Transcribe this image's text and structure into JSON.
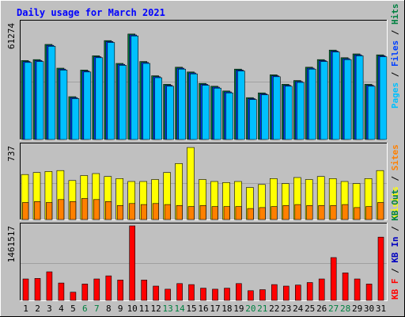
{
  "title": "Daily usage for March 2021",
  "colors": {
    "background": "#c0c0c0",
    "title": "#0000ff",
    "pages": "#00c0ff",
    "files": "#0040ff",
    "hits": "#008040",
    "visits": "#ffff00",
    "sites": "#ff8000",
    "kbin": "#0000c0",
    "kbout": "#008040",
    "kbf": "#ff0000",
    "weekend": "#008040"
  },
  "side_labels": {
    "top": [
      "Pages",
      "Files",
      "Hits"
    ],
    "middle": [
      "Visits",
      "Sites"
    ],
    "bottom": [
      "KB F",
      "KB In",
      "KB Out"
    ]
  },
  "chart_data": {
    "type": "bar",
    "days": [
      "1",
      "2",
      "3",
      "4",
      "5",
      "6",
      "7",
      "8",
      "9",
      "10",
      "11",
      "12",
      "13",
      "14",
      "15",
      "16",
      "17",
      "18",
      "19",
      "20",
      "21",
      "22",
      "23",
      "24",
      "25",
      "26",
      "27",
      "28",
      "29",
      "30",
      "31"
    ],
    "weekend_days": [
      "6",
      "7",
      "13",
      "14",
      "20",
      "21",
      "27",
      "28"
    ],
    "panels": [
      {
        "name": "usage",
        "max_label": "61274",
        "ylim": [
          0,
          61274
        ],
        "series": [
          {
            "name": "Hits",
            "values": [
              41500,
              42000,
              50000,
              37500,
              22500,
              36500,
              44000,
              52000,
              40000,
              55500,
              41000,
              33500,
              29000,
              38000,
              35500,
              29500,
              28000,
              25500,
              37000,
              22000,
              24500,
              34000,
              29000,
              31000,
              38000,
              42000,
              47000,
              43000,
              45000,
              29000,
              44500
            ]
          },
          {
            "name": "Files",
            "values": [
              41000,
              41500,
              49500,
              37000,
              22000,
              36000,
              43500,
              51500,
              39500,
              55000,
              40500,
              33000,
              28500,
              37500,
              35000,
              29000,
              27500,
              25000,
              36500,
              21500,
              24000,
              33500,
              28500,
              30500,
              37500,
              41500,
              46500,
              42500,
              44500,
              28500,
              44000
            ]
          },
          {
            "name": "Pages",
            "values": [
              40500,
              41000,
              49000,
              36500,
              21500,
              35500,
              43000,
              51000,
              39000,
              54500,
              40000,
              32500,
              28000,
              37000,
              34500,
              28500,
              27000,
              24500,
              36000,
              21000,
              23500,
              33000,
              28000,
              30000,
              37000,
              41000,
              46000,
              42000,
              44000,
              28000,
              43500
            ]
          }
        ]
      },
      {
        "name": "visits",
        "max_label": "737",
        "ylim": [
          0,
          737
        ],
        "series": [
          {
            "name": "Visits",
            "values": [
              450,
              470,
              480,
              490,
              390,
              440,
              460,
              430,
              410,
              380,
              380,
              400,
              470,
              560,
              720,
              400,
              380,
              370,
              380,
              320,
              350,
              410,
              360,
              420,
              400,
              430,
              410,
              380,
              360,
              410,
              490
            ]
          },
          {
            "name": "Sites",
            "values": [
              170,
              180,
              170,
              200,
              180,
              210,
              200,
              180,
              140,
              160,
              150,
              160,
              150,
              140,
              130,
              140,
              130,
              130,
              130,
              110,
              120,
              130,
              140,
              150,
              140,
              140,
              140,
              150,
              120,
              130,
              170
            ]
          }
        ]
      },
      {
        "name": "kbytes",
        "max_label": "1461517",
        "ylim": [
          0,
          1461517
        ],
        "series": [
          {
            "name": "KB F",
            "values": [
              420000,
              430000,
              560000,
              340000,
              160000,
              320000,
              420000,
              480000,
              400000,
              1461517,
              400000,
              280000,
              220000,
              330000,
              310000,
              240000,
              220000,
              240000,
              330000,
              190000,
              210000,
              310000,
              280000,
              300000,
              350000,
              420000,
              840000,
              540000,
              420000,
              320000,
              1240000
            ]
          }
        ]
      }
    ]
  }
}
